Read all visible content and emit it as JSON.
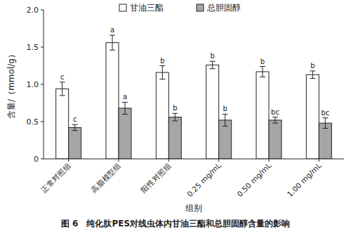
{
  "chart_data": {
    "type": "bar",
    "title": "图 6　纯化肽PES对线虫体内甘油三酯和总胆固醇含量的影响",
    "x_label": "组别",
    "y_label": "含量/（mmol/g）",
    "categories": [
      "正常对照组",
      "高脂模型组",
      "阳性对照组",
      "0.25 mg/mL",
      "0.50 mg/mL",
      "1.00 mg/mL"
    ],
    "series": [
      {
        "name": "甘油三酯",
        "color": "#ffffff",
        "values": [
          0.94,
          1.56,
          1.16,
          1.26,
          1.17,
          1.13
        ],
        "errors": [
          0.09,
          0.1,
          0.09,
          0.05,
          0.07,
          0.05
        ],
        "significance": [
          "c",
          "a",
          "b",
          "b",
          "b",
          "b"
        ]
      },
      {
        "name": "总胆固醇",
        "color": "#a6a6a6",
        "values": [
          0.42,
          0.68,
          0.56,
          0.52,
          0.52,
          0.48
        ],
        "errors": [
          0.04,
          0.08,
          0.05,
          0.08,
          0.04,
          0.07
        ],
        "significance": [
          "c",
          "a",
          "b",
          "b",
          "bc",
          "bc"
        ]
      }
    ],
    "ylim": [
      0,
      2
    ],
    "yticks": [
      0,
      0.5,
      {
        "value": 1,
        "label": "1.0"
      },
      1.5,
      {
        "value": 2,
        "label": "2.0"
      }
    ],
    "grid": false,
    "legend": "top"
  }
}
